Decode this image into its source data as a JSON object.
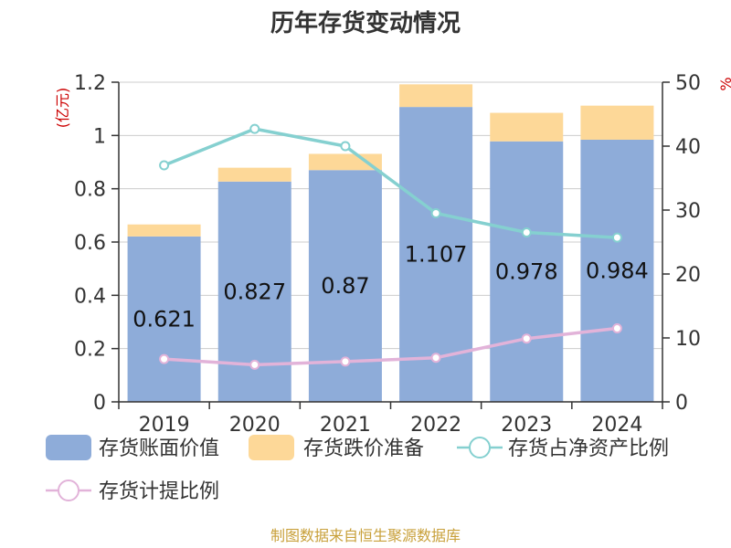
{
  "title": "历年存货变动情况",
  "source": "制图数据来自恒生聚源数据库",
  "left_unit": "(亿元)",
  "right_unit": "%",
  "colors": {
    "book_value": "#8eacd9",
    "reserve": "#fdd898",
    "net_asset_ratio": "#85d0d0",
    "provision_ratio": "#e2b3d9",
    "axis": "#333333",
    "grid": "#cccccc"
  },
  "chart_data": {
    "type": "bar",
    "stacked": true,
    "categories": [
      "2019",
      "2020",
      "2021",
      "2022",
      "2023",
      "2024"
    ],
    "ylim_left": [
      0,
      1.2
    ],
    "yticks_left": [
      "0",
      "0.2",
      "0.4",
      "0.6",
      "0.8",
      "1",
      "1.2"
    ],
    "ylim_right": [
      0,
      50
    ],
    "yticks_right": [
      "0",
      "10",
      "20",
      "30",
      "40",
      "50"
    ],
    "series": [
      {
        "name": "存货账面价值",
        "type": "bar",
        "axis": "left",
        "values": [
          0.621,
          0.827,
          0.87,
          1.107,
          0.978,
          0.984
        ],
        "labels": [
          "0.621",
          "0.827",
          "0.87",
          "1.107",
          "0.978",
          "0.984"
        ]
      },
      {
        "name": "存货跌价准备",
        "type": "bar",
        "axis": "left",
        "values": [
          0.045,
          0.052,
          0.061,
          0.085,
          0.107,
          0.128
        ]
      },
      {
        "name": "存货占净资产比例",
        "type": "line",
        "axis": "right",
        "values": [
          37,
          42.7,
          40,
          29.5,
          26.5,
          25.7
        ]
      },
      {
        "name": "存货计提比例",
        "type": "line",
        "axis": "right",
        "values": [
          6.7,
          5.8,
          6.3,
          6.9,
          9.9,
          11.5
        ]
      }
    ],
    "grid": true,
    "legend_position": "bottom"
  }
}
